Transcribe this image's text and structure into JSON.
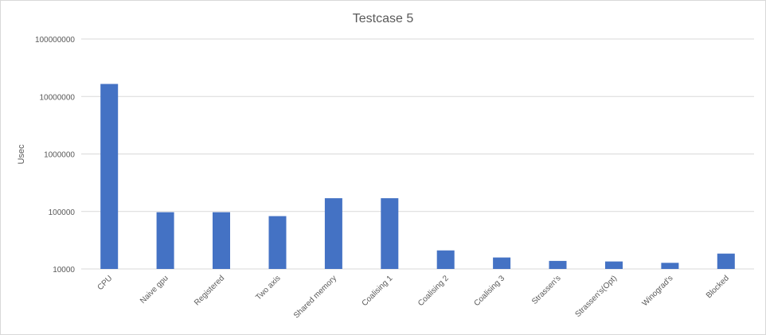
{
  "chart_data": {
    "type": "bar",
    "title": "Testcase 5",
    "xlabel": "",
    "ylabel": "Usec",
    "yscale": "log",
    "ylim": [
      10000,
      100000000
    ],
    "yticks": [
      "100000000",
      "10000000",
      "1000000",
      "100000",
      "10000"
    ],
    "grid": true,
    "legend": "none",
    "bar_color": "#4472c4",
    "categories": [
      "CPU",
      "Naive gpu",
      "Registered",
      "Two axis",
      "Shared memory",
      "Coalising 1",
      "Coalising 2",
      "Coalising 3",
      "Strassen's",
      "Strassen's(Opt)",
      "Winograd's",
      "Blocked"
    ],
    "values": [
      16500000,
      97000,
      97000,
      83000,
      170000,
      170000,
      21000,
      15800,
      13800,
      13500,
      12800,
      18500
    ]
  }
}
